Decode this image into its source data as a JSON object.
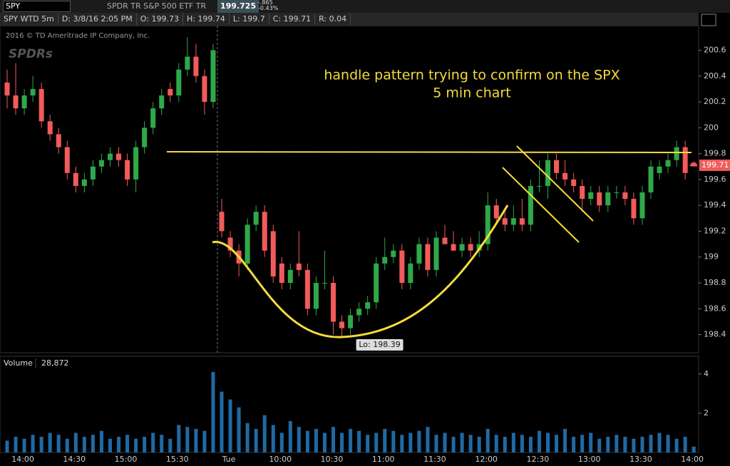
{
  "header": {
    "symbol": "SPY",
    "description": "SPDR TR S&P 500 ETF TR",
    "last": "199.725",
    "change": "-.865",
    "change_pct": "-0.43%"
  },
  "info_bar": [
    "SPY WTD 5m",
    "D: 3/8/16 2:05 PM",
    "O: 199.73",
    "H: 199.74",
    "L: 199.7",
    "C: 199.71",
    "R: 0.04"
  ],
  "chart_data": [
    {
      "type": "candlestick",
      "copyright": "2016 © TD Ameritrade IP Company, Inc.",
      "watermark": "SPDRs",
      "annotations": [
        "handle pattern trying to confirm on the SPX",
        "5 min chart"
      ],
      "low_label": "Lo: 198.39",
      "last_value": 199.71,
      "categories": [
        null,
        "14:00",
        null,
        null,
        null,
        null,
        null,
        "14:30",
        null,
        null,
        null,
        null,
        null,
        "15:00",
        null,
        null,
        null,
        null,
        null,
        "15:30",
        null,
        null,
        null,
        null,
        null,
        "Tue",
        null,
        null,
        null,
        null,
        null,
        "10:00",
        null,
        null,
        null,
        null,
        null,
        "10:30",
        null,
        null,
        null,
        null,
        null,
        "11:00",
        null,
        null,
        null,
        null,
        null,
        "11:30",
        null,
        null,
        null,
        null,
        null,
        "12:00",
        null,
        null,
        null,
        null,
        null,
        "12:30",
        null,
        null,
        null,
        null,
        null,
        "13:00",
        null,
        null,
        null,
        null,
        null,
        "13:30",
        null,
        null,
        null,
        null,
        null,
        "14:00",
        null
      ],
      "open": [
        200.35,
        200.25,
        200.15,
        200.25,
        200.3,
        200.05,
        199.95,
        199.85,
        199.65,
        199.55,
        199.6,
        199.7,
        199.75,
        199.8,
        199.75,
        199.6,
        199.85,
        200.0,
        200.15,
        200.3,
        200.25,
        200.45,
        200.55,
        200.4,
        200.2,
        199.35,
        199.15,
        199.05,
        198.95,
        199.25,
        199.35,
        199.2,
        198.95,
        198.8,
        198.95,
        198.9,
        198.6,
        198.8,
        198.8,
        198.5,
        198.45,
        198.55,
        198.6,
        198.65,
        198.95,
        199.0,
        199.05,
        198.8,
        198.95,
        199.1,
        198.9,
        199.15,
        199.1,
        199.05,
        199.1,
        199.05,
        199.1,
        199.4,
        199.3,
        199.25,
        199.3,
        199.25,
        199.55,
        199.55,
        199.75,
        199.65,
        199.6,
        199.55,
        199.45,
        199.5,
        199.4,
        199.5,
        199.5,
        199.45,
        199.3,
        199.5,
        199.65,
        199.7,
        199.75,
        199.85,
        199.73
      ],
      "high": [
        200.45,
        200.5,
        200.3,
        200.4,
        200.35,
        200.1,
        200.0,
        199.9,
        199.7,
        199.65,
        199.75,
        199.8,
        199.85,
        199.85,
        199.8,
        199.9,
        200.05,
        200.2,
        200.3,
        200.35,
        200.5,
        200.7,
        200.65,
        200.45,
        200.65,
        199.45,
        199.2,
        199.1,
        199.3,
        199.4,
        199.4,
        199.25,
        199.0,
        198.95,
        199.2,
        198.95,
        198.85,
        199.05,
        198.85,
        198.55,
        198.6,
        198.65,
        198.7,
        199.0,
        199.15,
        199.1,
        199.1,
        199.0,
        199.15,
        199.15,
        199.2,
        199.25,
        199.2,
        199.15,
        199.15,
        199.2,
        199.5,
        199.45,
        199.35,
        199.4,
        199.45,
        199.6,
        199.75,
        199.8,
        199.8,
        199.75,
        199.65,
        199.6,
        199.55,
        199.55,
        199.55,
        199.55,
        199.55,
        199.5,
        199.55,
        199.75,
        199.75,
        199.8,
        199.9,
        199.9,
        199.74
      ],
      "low": [
        200.15,
        200.1,
        200.1,
        200.2,
        200.0,
        199.9,
        199.8,
        199.6,
        199.5,
        199.5,
        199.55,
        199.65,
        199.7,
        199.7,
        199.55,
        199.5,
        199.8,
        199.95,
        200.1,
        200.2,
        200.2,
        200.4,
        200.35,
        200.1,
        200.15,
        199.15,
        199.0,
        198.85,
        198.9,
        199.2,
        199.0,
        198.8,
        198.75,
        198.75,
        198.85,
        198.55,
        198.55,
        198.75,
        198.4,
        198.39,
        198.4,
        198.5,
        198.55,
        198.6,
        198.9,
        198.95,
        198.75,
        198.75,
        198.9,
        198.85,
        198.85,
        199.1,
        199.05,
        199.0,
        199.0,
        199.0,
        199.05,
        199.25,
        199.2,
        199.2,
        199.2,
        199.2,
        199.5,
        199.45,
        199.6,
        199.55,
        199.5,
        199.35,
        199.4,
        199.35,
        199.35,
        199.45,
        199.4,
        199.25,
        199.25,
        199.45,
        199.6,
        199.65,
        199.7,
        199.6,
        199.7
      ],
      "close": [
        200.25,
        200.15,
        200.25,
        200.3,
        200.05,
        199.95,
        199.85,
        199.65,
        199.55,
        199.6,
        199.7,
        199.75,
        199.8,
        199.75,
        199.6,
        199.85,
        200.0,
        200.15,
        200.25,
        200.25,
        200.45,
        200.55,
        200.4,
        200.2,
        200.6,
        199.2,
        199.05,
        198.95,
        199.25,
        199.35,
        199.05,
        198.85,
        198.8,
        198.9,
        198.9,
        198.6,
        198.8,
        198.8,
        198.5,
        198.45,
        198.55,
        198.6,
        198.65,
        198.95,
        199.0,
        199.05,
        198.8,
        198.95,
        199.1,
        198.9,
        199.15,
        199.1,
        199.05,
        199.1,
        199.05,
        199.1,
        199.4,
        199.3,
        199.25,
        199.3,
        199.25,
        199.55,
        199.55,
        199.75,
        199.65,
        199.6,
        199.55,
        199.45,
        199.5,
        199.4,
        199.5,
        199.5,
        199.45,
        199.3,
        199.5,
        199.7,
        199.7,
        199.75,
        199.85,
        199.65,
        199.71
      ],
      "up_color": "#2fa84a",
      "down_color": "#f25b5b",
      "ylim": [
        198.26,
        200.79
      ],
      "yticks": [
        198.4,
        198.6,
        198.8,
        199,
        199.2,
        199.4,
        199.6,
        199.8,
        200,
        200.2,
        200.4,
        200.6
      ]
    },
    {
      "type": "bar",
      "title": "Volume",
      "last_value_label": "28,872",
      "color": "#1f6aa5",
      "values": [
        0.6,
        0.8,
        0.7,
        0.9,
        0.8,
        1.0,
        0.9,
        0.7,
        1.0,
        0.8,
        0.9,
        1.1,
        0.7,
        0.8,
        0.9,
        0.7,
        0.8,
        1.0,
        0.9,
        0.7,
        1.4,
        1.3,
        1.2,
        1.1,
        4.1,
        3.1,
        2.7,
        2.3,
        1.5,
        1.2,
        1.9,
        1.4,
        1.0,
        1.6,
        1.3,
        1.1,
        1.2,
        1.0,
        1.3,
        1.0,
        1.2,
        1.1,
        0.9,
        1.0,
        1.2,
        1.1,
        0.9,
        1.0,
        1.1,
        1.3,
        0.9,
        1.0,
        0.8,
        1.0,
        0.9,
        0.8,
        1.2,
        0.9,
        0.8,
        1.0,
        0.9,
        0.8,
        1.1,
        1.0,
        0.9,
        1.2,
        0.8,
        0.9,
        1.0,
        0.7,
        0.8,
        0.9,
        0.8,
        0.7,
        0.8,
        0.9,
        1.0,
        0.9,
        0.7,
        0.8,
        0.3
      ],
      "ylim": [
        0,
        4.25
      ],
      "yticks": [
        2,
        4
      ]
    }
  ]
}
